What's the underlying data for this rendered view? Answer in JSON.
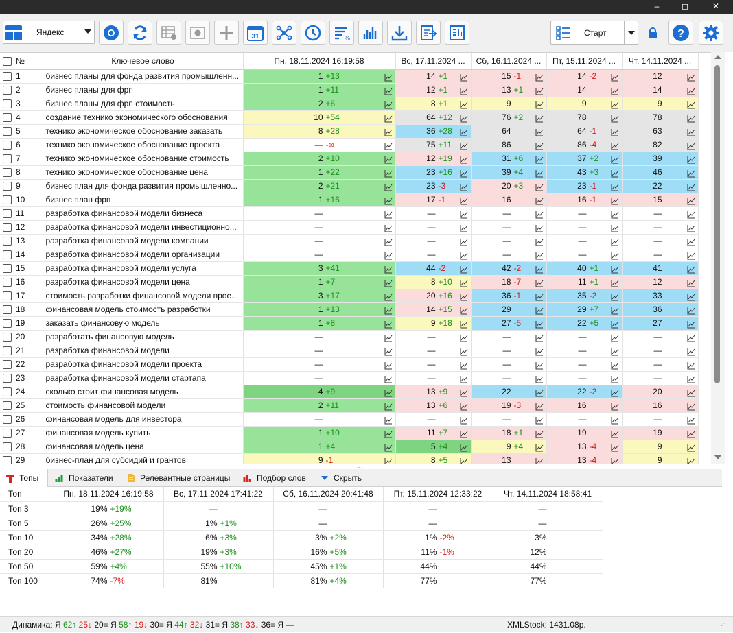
{
  "window": {
    "minimize": "–",
    "maximize": "◻",
    "close": "✕"
  },
  "toolbar": {
    "engine": "Яндекс",
    "start": "Старт"
  },
  "grid": {
    "headers": [
      "№",
      "Ключевое слово",
      "Пн, 18.11.2024 16:19:58",
      "Вс, 17.11.2024 ...",
      "Сб, 16.11.2024 ...",
      "Пт, 15.11.2024 ...",
      "Чт, 14.11.2024 ..."
    ],
    "rows": [
      {
        "n": "1",
        "kw": "бизнес планы для фонда развития промышленн...",
        "c": [
          [
            "1",
            "+13",
            "green"
          ],
          [
            "14",
            "+1",
            "pink"
          ],
          [
            "15",
            "-1",
            "pink"
          ],
          [
            "14",
            "-2",
            "pink"
          ],
          [
            "12",
            "",
            "pink"
          ]
        ]
      },
      {
        "n": "2",
        "kw": "бизнес планы для фрп",
        "c": [
          [
            "1",
            "+11",
            "green"
          ],
          [
            "12",
            "+1",
            "pink"
          ],
          [
            "13",
            "+1",
            "pink"
          ],
          [
            "14",
            "",
            "pink"
          ],
          [
            "14",
            "",
            "pink"
          ]
        ]
      },
      {
        "n": "3",
        "kw": "бизнес планы для фрп стоимость",
        "c": [
          [
            "2",
            "+6",
            "green"
          ],
          [
            "8",
            "+1",
            "yellow"
          ],
          [
            "9",
            "",
            "yellow"
          ],
          [
            "9",
            "",
            "yellow"
          ],
          [
            "9",
            "",
            "yellow"
          ]
        ]
      },
      {
        "n": "4",
        "kw": "создание технико экономического обоснования",
        "c": [
          [
            "10",
            "+54",
            "yellow"
          ],
          [
            "64",
            "+12",
            "gray"
          ],
          [
            "76",
            "+2",
            "gray"
          ],
          [
            "78",
            "",
            "gray"
          ],
          [
            "78",
            "",
            "gray"
          ]
        ]
      },
      {
        "n": "5",
        "kw": "технико экономическое обоснование заказать",
        "c": [
          [
            "8",
            "+28",
            "yellow"
          ],
          [
            "36",
            "+28",
            "blue"
          ],
          [
            "64",
            "",
            "gray"
          ],
          [
            "64",
            "-1",
            "gray"
          ],
          [
            "63",
            "",
            "gray"
          ]
        ]
      },
      {
        "n": "6",
        "kw": "технико экономическое обоснование проекта",
        "c": [
          [
            "—",
            "-∞",
            "white"
          ],
          [
            "75",
            "+11",
            "gray"
          ],
          [
            "86",
            "",
            "gray"
          ],
          [
            "86",
            "-4",
            "gray"
          ],
          [
            "82",
            "",
            "gray"
          ]
        ]
      },
      {
        "n": "7",
        "kw": "технико экономическое обоснование стоимость",
        "c": [
          [
            "2",
            "+10",
            "green"
          ],
          [
            "12",
            "+19",
            "pink"
          ],
          [
            "31",
            "+6",
            "blue"
          ],
          [
            "37",
            "+2",
            "blue"
          ],
          [
            "39",
            "",
            "blue"
          ]
        ]
      },
      {
        "n": "8",
        "kw": "технико экономическое обоснование цена",
        "c": [
          [
            "1",
            "+22",
            "green"
          ],
          [
            "23",
            "+16",
            "blue"
          ],
          [
            "39",
            "+4",
            "blue"
          ],
          [
            "43",
            "+3",
            "blue"
          ],
          [
            "46",
            "",
            "blue"
          ]
        ]
      },
      {
        "n": "9",
        "kw": "бизнес план для фонда развития промышленно...",
        "c": [
          [
            "2",
            "+21",
            "green"
          ],
          [
            "23",
            "-3",
            "blue"
          ],
          [
            "20",
            "+3",
            "pink"
          ],
          [
            "23",
            "-1",
            "blue"
          ],
          [
            "22",
            "",
            "blue"
          ]
        ]
      },
      {
        "n": "10",
        "kw": "бизнес план фрп",
        "c": [
          [
            "1",
            "+16",
            "green"
          ],
          [
            "17",
            "-1",
            "pink"
          ],
          [
            "16",
            "",
            "pink"
          ],
          [
            "16",
            "-1",
            "pink"
          ],
          [
            "15",
            "",
            "pink"
          ]
        ]
      },
      {
        "n": "11",
        "kw": "разработка финансовой модели бизнеса",
        "c": [
          [
            "—",
            "",
            "white"
          ],
          [
            "—",
            "",
            "white"
          ],
          [
            "—",
            "",
            "white"
          ],
          [
            "—",
            "",
            "white"
          ],
          [
            "—",
            "",
            "white"
          ]
        ]
      },
      {
        "n": "12",
        "kw": "разработка финансовой модели инвестиционно...",
        "c": [
          [
            "—",
            "",
            "white"
          ],
          [
            "—",
            "",
            "white"
          ],
          [
            "—",
            "",
            "white"
          ],
          [
            "—",
            "",
            "white"
          ],
          [
            "—",
            "",
            "white"
          ]
        ]
      },
      {
        "n": "13",
        "kw": "разработка финансовой модели компании",
        "c": [
          [
            "—",
            "",
            "white"
          ],
          [
            "—",
            "",
            "white"
          ],
          [
            "—",
            "",
            "white"
          ],
          [
            "—",
            "",
            "white"
          ],
          [
            "—",
            "",
            "white"
          ]
        ]
      },
      {
        "n": "14",
        "kw": "разработка финансовой модели организации",
        "c": [
          [
            "—",
            "",
            "white"
          ],
          [
            "—",
            "",
            "white"
          ],
          [
            "—",
            "",
            "white"
          ],
          [
            "—",
            "",
            "white"
          ],
          [
            "—",
            "",
            "white"
          ]
        ]
      },
      {
        "n": "15",
        "kw": "разработка финансовой модели услуга",
        "c": [
          [
            "3",
            "+41",
            "green"
          ],
          [
            "44",
            "-2",
            "blue"
          ],
          [
            "42",
            "-2",
            "blue"
          ],
          [
            "40",
            "+1",
            "blue"
          ],
          [
            "41",
            "",
            "blue"
          ]
        ]
      },
      {
        "n": "16",
        "kw": "разработка финансовой модели цена",
        "c": [
          [
            "1",
            "+7",
            "green"
          ],
          [
            "8",
            "+10",
            "yellow"
          ],
          [
            "18",
            "-7",
            "pink"
          ],
          [
            "11",
            "+1",
            "pink"
          ],
          [
            "12",
            "",
            "pink"
          ]
        ]
      },
      {
        "n": "17",
        "kw": "стоимость разработки финансовой модели прое...",
        "c": [
          [
            "3",
            "+17",
            "green"
          ],
          [
            "20",
            "+16",
            "pink"
          ],
          [
            "36",
            "-1",
            "blue"
          ],
          [
            "35",
            "-2",
            "blue"
          ],
          [
            "33",
            "",
            "blue"
          ]
        ]
      },
      {
        "n": "18",
        "kw": "финансовая модель стоимость разработки",
        "c": [
          [
            "1",
            "+13",
            "green"
          ],
          [
            "14",
            "+15",
            "pink"
          ],
          [
            "29",
            "",
            "blue"
          ],
          [
            "29",
            "+7",
            "blue"
          ],
          [
            "36",
            "",
            "blue"
          ]
        ]
      },
      {
        "n": "19",
        "kw": "заказать финансовую модель",
        "c": [
          [
            "1",
            "+8",
            "green"
          ],
          [
            "9",
            "+18",
            "yellow"
          ],
          [
            "27",
            "-5",
            "blue"
          ],
          [
            "22",
            "+5",
            "blue"
          ],
          [
            "27",
            "",
            "blue"
          ]
        ]
      },
      {
        "n": "20",
        "kw": "разработать финансовую модель",
        "c": [
          [
            "—",
            "",
            "white"
          ],
          [
            "—",
            "",
            "white"
          ],
          [
            "—",
            "",
            "white"
          ],
          [
            "—",
            "",
            "white"
          ],
          [
            "—",
            "",
            "white"
          ]
        ]
      },
      {
        "n": "21",
        "kw": "разработка финансовой модели",
        "c": [
          [
            "—",
            "",
            "white"
          ],
          [
            "—",
            "",
            "white"
          ],
          [
            "—",
            "",
            "white"
          ],
          [
            "—",
            "",
            "white"
          ],
          [
            "—",
            "",
            "white"
          ]
        ]
      },
      {
        "n": "22",
        "kw": "разработка финансовой модели проекта",
        "c": [
          [
            "—",
            "",
            "white"
          ],
          [
            "—",
            "",
            "white"
          ],
          [
            "—",
            "",
            "white"
          ],
          [
            "—",
            "",
            "white"
          ],
          [
            "—",
            "",
            "white"
          ]
        ]
      },
      {
        "n": "23",
        "kw": "разработка финансовой модели стартапа",
        "c": [
          [
            "—",
            "",
            "white"
          ],
          [
            "—",
            "",
            "white"
          ],
          [
            "—",
            "",
            "white"
          ],
          [
            "—",
            "",
            "white"
          ],
          [
            "—",
            "",
            "white"
          ]
        ]
      },
      {
        "n": "24",
        "kw": "сколько стоит финансовая модель",
        "c": [
          [
            "4",
            "+9",
            "dgreen"
          ],
          [
            "13",
            "+9",
            "pink"
          ],
          [
            "22",
            "",
            "blue"
          ],
          [
            "22",
            "-2",
            "blue"
          ],
          [
            "20",
            "",
            "pink"
          ]
        ]
      },
      {
        "n": "25",
        "kw": "стоимость финансовой модели",
        "c": [
          [
            "2",
            "+11",
            "green"
          ],
          [
            "13",
            "+6",
            "pink"
          ],
          [
            "19",
            "-3",
            "pink"
          ],
          [
            "16",
            "",
            "pink"
          ],
          [
            "16",
            "",
            "pink"
          ]
        ]
      },
      {
        "n": "26",
        "kw": "финансовая модель для инвестора",
        "c": [
          [
            "—",
            "",
            "white"
          ],
          [
            "—",
            "",
            "white"
          ],
          [
            "—",
            "",
            "white"
          ],
          [
            "—",
            "",
            "white"
          ],
          [
            "—",
            "",
            "white"
          ]
        ]
      },
      {
        "n": "27",
        "kw": "финансовая модель купить",
        "c": [
          [
            "1",
            "+10",
            "green"
          ],
          [
            "11",
            "+7",
            "pink"
          ],
          [
            "18",
            "+1",
            "pink"
          ],
          [
            "19",
            "",
            "pink"
          ],
          [
            "19",
            "",
            "pink"
          ]
        ]
      },
      {
        "n": "28",
        "kw": "финансовая модель цена",
        "c": [
          [
            "1",
            "+4",
            "green"
          ],
          [
            "5",
            "+4",
            "dgreen"
          ],
          [
            "9",
            "+4",
            "yellow"
          ],
          [
            "13",
            "-4",
            "pink"
          ],
          [
            "9",
            "",
            "yellow"
          ]
        ]
      },
      {
        "n": "29",
        "kw": "бизнес-план для субсидий и грантов",
        "c": [
          [
            "9",
            "-1",
            "yellow"
          ],
          [
            "8",
            "+5",
            "yellow"
          ],
          [
            "13",
            "",
            "pink"
          ],
          [
            "13",
            "-4",
            "pink"
          ],
          [
            "9",
            "",
            "yellow"
          ]
        ]
      }
    ]
  },
  "tabs": [
    {
      "label": "Топы",
      "icon": "t-icon"
    },
    {
      "label": "Показатели",
      "icon": "bar-chart-icon"
    },
    {
      "label": "Релевантные страницы",
      "icon": "page-icon"
    },
    {
      "label": "Подбор слов",
      "icon": "bar-chart-red-icon"
    },
    {
      "label": "Скрыть",
      "icon": "triangle-down-icon"
    }
  ],
  "tops": {
    "headers": [
      "Топ",
      "Пн, 18.11.2024 16:19:58",
      "Вс, 17.11.2024 17:41:22",
      "Сб, 16.11.2024 20:41:48",
      "Пт, 15.11.2024 12:33:22",
      "Чт, 14.11.2024 18:58:41"
    ],
    "rows": [
      {
        "label": "Топ 3",
        "c": [
          [
            "19%",
            "+19%"
          ],
          [
            "—",
            ""
          ],
          [
            "—",
            ""
          ],
          [
            "—",
            ""
          ],
          [
            "—",
            ""
          ]
        ]
      },
      {
        "label": "Топ 5",
        "c": [
          [
            "26%",
            "+25%"
          ],
          [
            "1%",
            "+1%"
          ],
          [
            "—",
            ""
          ],
          [
            "—",
            ""
          ],
          [
            "—",
            ""
          ]
        ]
      },
      {
        "label": "Топ 10",
        "c": [
          [
            "34%",
            "+28%"
          ],
          [
            "6%",
            "+3%"
          ],
          [
            "3%",
            "+2%"
          ],
          [
            "1%",
            "-2%"
          ],
          [
            "3%",
            ""
          ]
        ]
      },
      {
        "label": "Топ 20",
        "c": [
          [
            "46%",
            "+27%"
          ],
          [
            "19%",
            "+3%"
          ],
          [
            "16%",
            "+5%"
          ],
          [
            "11%",
            "-1%"
          ],
          [
            "12%",
            ""
          ]
        ]
      },
      {
        "label": "Топ 50",
        "c": [
          [
            "59%",
            "+4%"
          ],
          [
            "55%",
            "+10%"
          ],
          [
            "45%",
            "+1%"
          ],
          [
            "44%",
            ""
          ],
          [
            "44%",
            ""
          ]
        ]
      },
      {
        "label": "Топ 100",
        "c": [
          [
            "74%",
            "-7%"
          ],
          [
            "81%",
            ""
          ],
          [
            "81%",
            "+4%"
          ],
          [
            "77%",
            ""
          ],
          [
            "77%",
            ""
          ]
        ]
      }
    ]
  },
  "status": {
    "prefix": "Динамика:",
    "groups": [
      {
        "e": "Я",
        "up": "62↑",
        "dn": "25↓",
        "eq": "20≡"
      },
      {
        "e": "Я",
        "up": "58↑",
        "dn": "19↓",
        "eq": "30≡"
      },
      {
        "e": "Я",
        "up": "44↑",
        "dn": "32↓",
        "eq": "31≡"
      },
      {
        "e": "Я",
        "up": "38↑",
        "dn": "33↓",
        "eq": "36≡"
      }
    ],
    "tail": "Я —",
    "xmlstock": "XMLStock: 1431.08р."
  },
  "colors": {
    "green": "#98e39a",
    "dgreen": "#7fd481",
    "yellow": "#fbf8bd",
    "pink": "#fbdcdc",
    "blue": "#9fdcf6",
    "gray": "#e5e5e5",
    "accent": "#1c6fd1"
  }
}
